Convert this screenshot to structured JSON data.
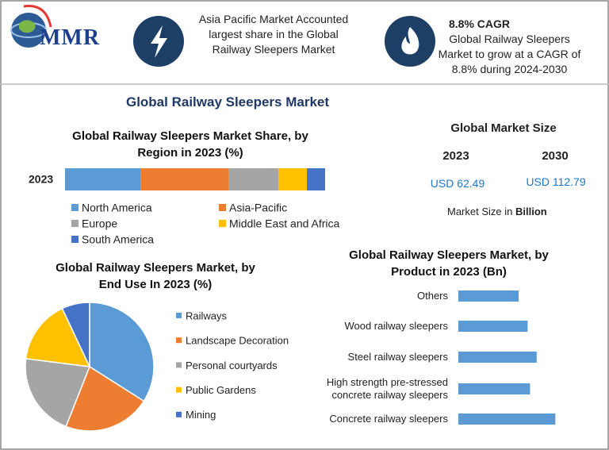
{
  "header": {
    "logo": "MMR",
    "share_note": "Asia Pacific Market Accounted largest share in the Global Railway Sleepers Market",
    "cagr_title": "8.8% CAGR",
    "cagr_note": "Global Railway Sleepers Market to grow at a CAGR of 8.8% during 2024-2030"
  },
  "title": "Global Railway Sleepers Market",
  "market_size": {
    "title": "Global Market Size",
    "years": [
      "2023",
      "2030"
    ],
    "values": [
      "USD 62.49",
      "USD 112.79"
    ],
    "unit_prefix": "Market Size in",
    "unit": "Billion"
  },
  "chart_data": [
    {
      "type": "stacked-bar",
      "title": "Global Railway Sleepers Market Share, by Region in 2023 (%)",
      "categories": [
        "2023"
      ],
      "xlim": [
        0,
        100
      ],
      "series": [
        {
          "name": "North America",
          "color": "#5b9bd5",
          "values": [
            29
          ]
        },
        {
          "name": "Asia-Pacific",
          "color": "#ed7d31",
          "values": [
            34
          ]
        },
        {
          "name": "Europe",
          "color": "#a5a5a5",
          "values": [
            19
          ]
        },
        {
          "name": "Middle East and Africa",
          "color": "#ffc000",
          "values": [
            11
          ]
        },
        {
          "name": "South America",
          "color": "#4472c4",
          "values": [
            7
          ]
        }
      ]
    },
    {
      "type": "pie",
      "title": "Global Railway Sleepers Market, by End Use  In 2023 (%)",
      "categories": [
        "Railways",
        "Landscape Decoration",
        "Personal courtyards",
        "Public Gardens",
        "Mining"
      ],
      "values": [
        34,
        22,
        21,
        16,
        7
      ],
      "colors": [
        "#5b9bd5",
        "#ed7d31",
        "#a5a5a5",
        "#ffc000",
        "#4472c4"
      ]
    },
    {
      "type": "hbar",
      "title": "Global Railway Sleepers Market, by Product in 2023 (Bn)",
      "categories": [
        "Others",
        "Wood railway sleepers",
        "Steel railway sleepers",
        "High strength pre-stressed concrete railway sleepers",
        "Concrete railway sleepers"
      ],
      "values": [
        10,
        11.5,
        13,
        11.9,
        16.1
      ],
      "color": "#5b9bd5",
      "xlim": [
        0,
        20
      ]
    }
  ]
}
